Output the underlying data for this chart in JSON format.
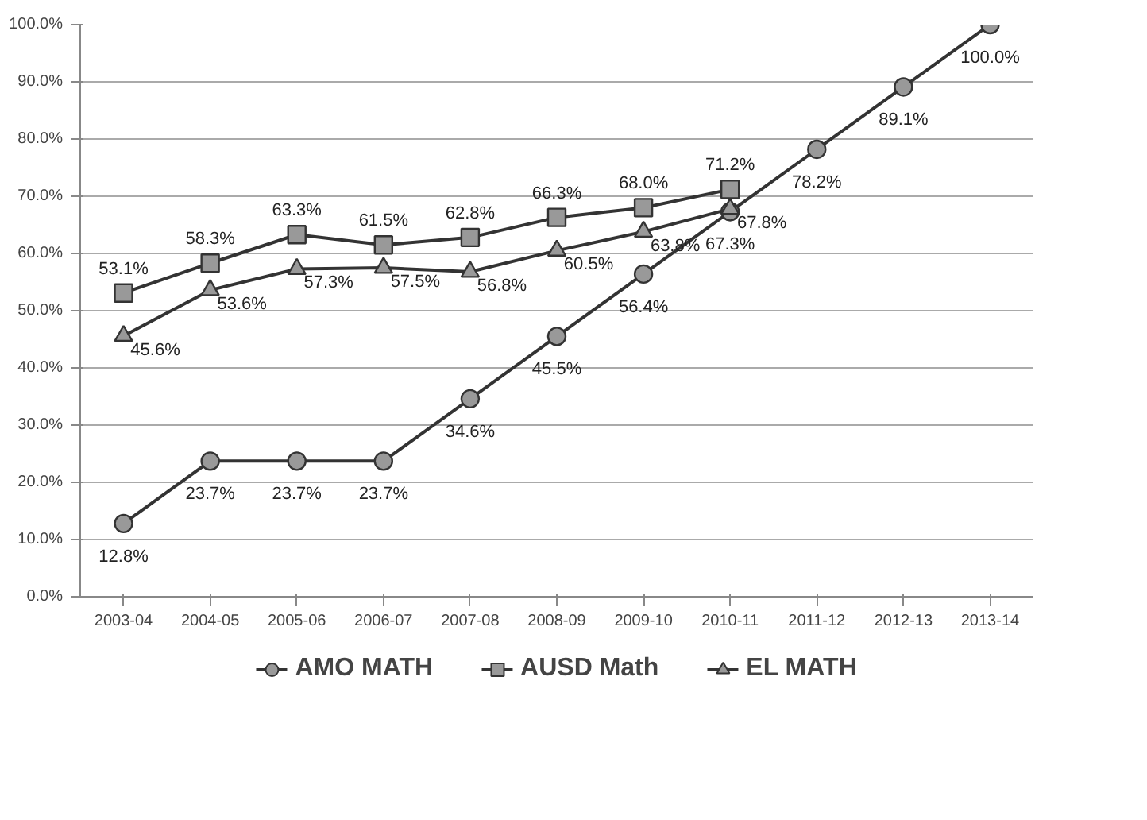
{
  "chart_data": {
    "type": "line",
    "categories": [
      "2003-04",
      "2004-05",
      "2005-06",
      "2006-07",
      "2007-08",
      "2008-09",
      "2009-10",
      "2010-11",
      "2011-12",
      "2012-13",
      "2013-14"
    ],
    "series": [
      {
        "name": "AMO MATH",
        "color": "#333333",
        "marker": "circle",
        "values": [
          12.8,
          23.7,
          23.7,
          23.7,
          34.6,
          45.5,
          56.4,
          67.3,
          78.2,
          89.1,
          100.0
        ],
        "value_labels": [
          "12.8%",
          "23.7%",
          "23.7%",
          "23.7%",
          "34.6%",
          "45.5%",
          "56.4%",
          "67.3%",
          "78.2%",
          "89.1%",
          "100.0%"
        ]
      },
      {
        "name": "AUSD Math",
        "color": "#333333",
        "marker": "square",
        "values": [
          53.1,
          58.3,
          63.3,
          61.5,
          62.8,
          66.3,
          68.0,
          71.2,
          null,
          null,
          null
        ],
        "value_labels": [
          "53.1%",
          "58.3%",
          "63.3%",
          "61.5%",
          "62.8%",
          "66.3%",
          "68.0%",
          "71.2%",
          null,
          null,
          null
        ]
      },
      {
        "name": "EL MATH",
        "color": "#333333",
        "marker": "triangle",
        "values": [
          45.6,
          53.6,
          57.3,
          57.5,
          56.8,
          60.5,
          63.8,
          67.8,
          null,
          null,
          null
        ],
        "value_labels": [
          "45.6%",
          "53.6%",
          "57.3%",
          "57.5%",
          "56.8%",
          "60.5%",
          "63.8%",
          "67.8%",
          null,
          null,
          null
        ]
      }
    ],
    "ylim": [
      0,
      100
    ],
    "yticks": [
      {
        "value": 0,
        "label": "0.0%"
      },
      {
        "value": 10,
        "label": "10.0%"
      },
      {
        "value": 20,
        "label": "20.0%"
      },
      {
        "value": 30,
        "label": "30.0%"
      },
      {
        "value": 40,
        "label": "40.0%"
      },
      {
        "value": 50,
        "label": "50.0%"
      },
      {
        "value": 60,
        "label": "60.0%"
      },
      {
        "value": 70,
        "label": "70.0%"
      },
      {
        "value": 80,
        "label": "80.0%"
      },
      {
        "value": 90,
        "label": "90.0%"
      },
      {
        "value": 100,
        "label": "100.0%"
      }
    ],
    "grid": "y",
    "legend": "bottom",
    "line_style": "solid"
  }
}
